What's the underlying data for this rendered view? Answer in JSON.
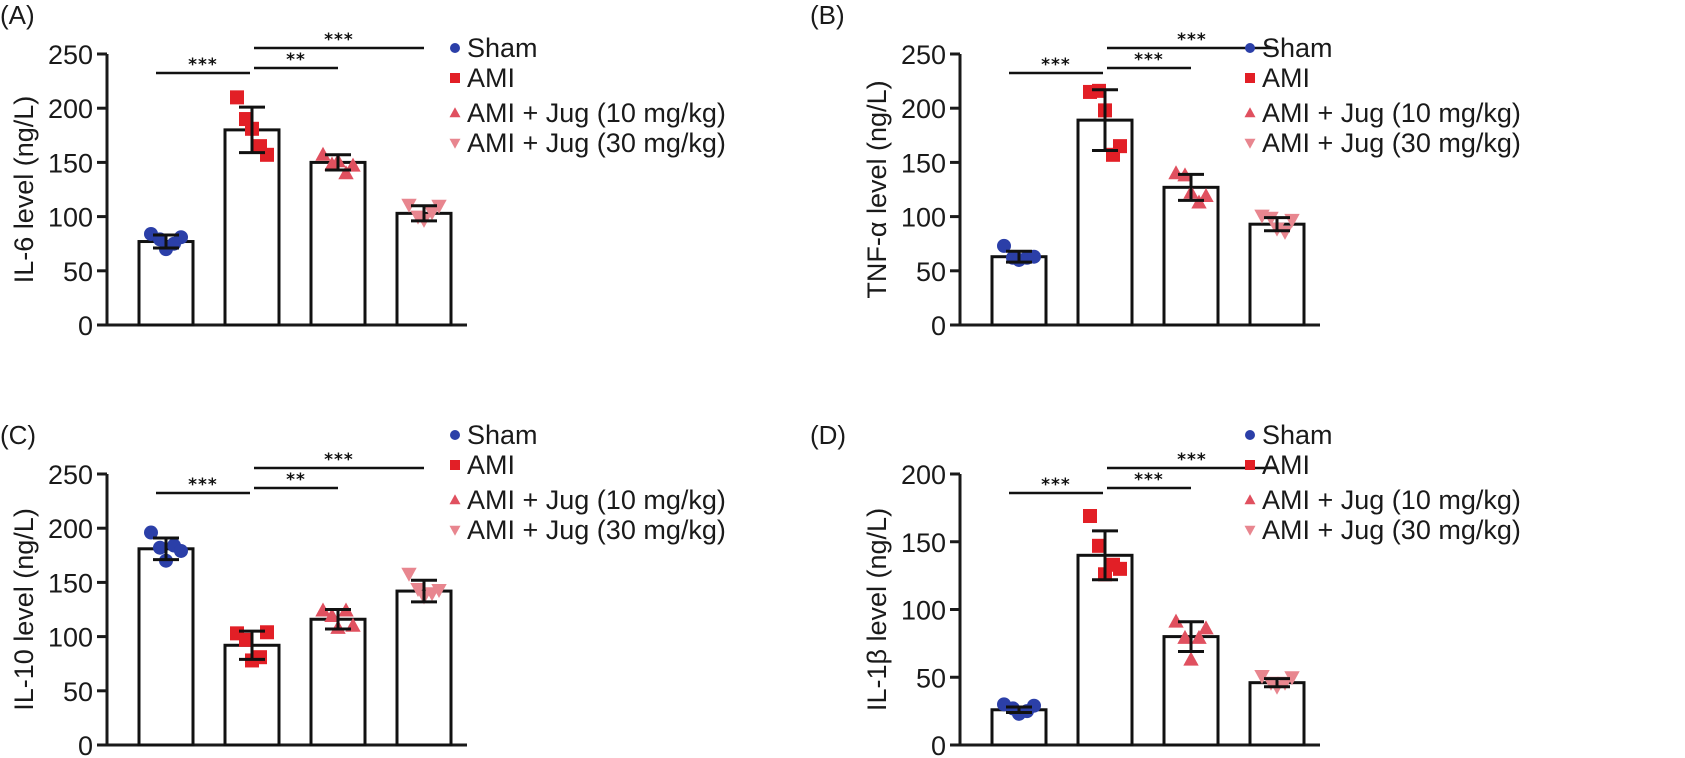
{
  "figure": {
    "groups": [
      "Sham",
      "AMI",
      "AMI + Jug (10 mg/kg)",
      "AMI + Jug (30 mg/kg)"
    ],
    "colors": {
      "Sham": "#2b3fa8",
      "AMI": "#e21f26",
      "Jug10": "#e0505f",
      "Jug30": "#e8868f"
    },
    "markers": [
      "circle",
      "square",
      "triangle-up",
      "triangle-down"
    ]
  },
  "chart_data": [
    {
      "panel": "(A)",
      "type": "bar",
      "ylabel": "IL-6 level (ng/L)",
      "ylim": [
        0,
        250
      ],
      "yticks": [
        0,
        50,
        100,
        150,
        200,
        250
      ],
      "categories": [
        "Sham",
        "AMI",
        "AMI + Jug (10 mg/kg)",
        "AMI + Jug (30 mg/kg)"
      ],
      "values": [
        77,
        180,
        150,
        103
      ],
      "error": [
        6,
        21,
        7,
        7
      ],
      "points": [
        [
          84,
          79,
          70,
          75,
          81
        ],
        [
          210,
          190,
          181,
          165,
          157
        ],
        [
          157,
          148,
          151,
          140,
          147
        ],
        [
          111,
          100,
          97,
          104,
          110
        ]
      ],
      "significance": [
        {
          "from": 0,
          "to": 1,
          "label": "***",
          "level": 1
        },
        {
          "from": 1,
          "to": 2,
          "label": "**",
          "level": 2
        },
        {
          "from": 1,
          "to": 3,
          "label": "***",
          "level": 3
        }
      ],
      "legend": [
        "Sham",
        "AMI",
        "AMI + Jug (10 mg/kg)",
        "AMI + Jug (30 mg/kg)"
      ],
      "legend_position": "right"
    },
    {
      "panel": "(B)",
      "type": "bar",
      "ylabel": "TNF-α level (ng/L)",
      "ylim": [
        0,
        250
      ],
      "yticks": [
        0,
        50,
        100,
        150,
        200,
        250
      ],
      "categories": [
        "Sham",
        "AMI",
        "AMI + Jug (10 mg/kg)",
        "AMI + Jug (30 mg/kg)"
      ],
      "values": [
        63,
        189,
        127,
        93
      ],
      "error": [
        5,
        28,
        12,
        6
      ],
      "points": [
        [
          73,
          62,
          60,
          62,
          63
        ],
        [
          215,
          216,
          198,
          157,
          165
        ],
        [
          140,
          138,
          122,
          113,
          119
        ],
        [
          101,
          99,
          89,
          86,
          97
        ]
      ],
      "significance": [
        {
          "from": 0,
          "to": 1,
          "label": "***",
          "level": 1
        },
        {
          "from": 1,
          "to": 2,
          "label": "***",
          "level": 2
        },
        {
          "from": 1,
          "to": 3,
          "label": "***",
          "level": 3
        }
      ],
      "legend": [
        "Sham",
        "AMI",
        "AMI + Jug (10 mg/kg)",
        "AMI + Jug (30 mg/kg)"
      ],
      "legend_position": "right"
    },
    {
      "panel": "(C)",
      "type": "bar",
      "ylabel": "IL-10 level (ng/L)",
      "ylim": [
        0,
        250
      ],
      "yticks": [
        0,
        50,
        100,
        150,
        200,
        250
      ],
      "categories": [
        "Sham",
        "AMI",
        "AMI + Jug (10 mg/kg)",
        "AMI + Jug (30 mg/kg)"
      ],
      "values": [
        181,
        92,
        116,
        142
      ],
      "error": [
        10,
        13,
        9,
        10
      ],
      "points": [
        [
          196,
          182,
          170,
          184,
          179
        ],
        [
          103,
          97,
          78,
          81,
          104
        ],
        [
          124,
          119,
          108,
          124,
          110
        ],
        [
          158,
          144,
          137,
          140,
          143
        ]
      ],
      "significance": [
        {
          "from": 0,
          "to": 1,
          "label": "***",
          "level": 1
        },
        {
          "from": 1,
          "to": 2,
          "label": "**",
          "level": 2
        },
        {
          "from": 1,
          "to": 3,
          "label": "***",
          "level": 3
        }
      ],
      "legend": [
        "Sham",
        "AMI",
        "AMI + Jug (10 mg/kg)",
        "AMI + Jug (30 mg/kg)"
      ],
      "legend_position": "right"
    },
    {
      "panel": "(D)",
      "type": "bar",
      "ylabel": "IL-1β  level (ng/L)",
      "ylim": [
        0,
        200
      ],
      "yticks": [
        0,
        50,
        100,
        150,
        200
      ],
      "categories": [
        "Sham",
        "AMI",
        "AMI + Jug (10 mg/kg)",
        "AMI + Jug (30 mg/kg)"
      ],
      "values": [
        26,
        140,
        80,
        46
      ],
      "error": [
        2,
        18,
        11,
        3
      ],
      "points": [
        [
          30,
          27,
          23,
          25,
          29
        ],
        [
          169,
          147,
          126,
          133,
          130
        ],
        [
          91,
          79,
          63,
          79,
          86
        ],
        [
          51,
          46,
          43,
          46,
          50
        ]
      ],
      "significance": [
        {
          "from": 0,
          "to": 1,
          "label": "***",
          "level": 1
        },
        {
          "from": 1,
          "to": 2,
          "label": "***",
          "level": 2
        },
        {
          "from": 1,
          "to": 3,
          "label": "***",
          "level": 3
        }
      ],
      "legend": [
        "Sham",
        "AMI",
        "AMI + Jug (10 mg/kg)",
        "AMI + Jug (30 mg/kg)"
      ],
      "legend_position": "right"
    }
  ]
}
